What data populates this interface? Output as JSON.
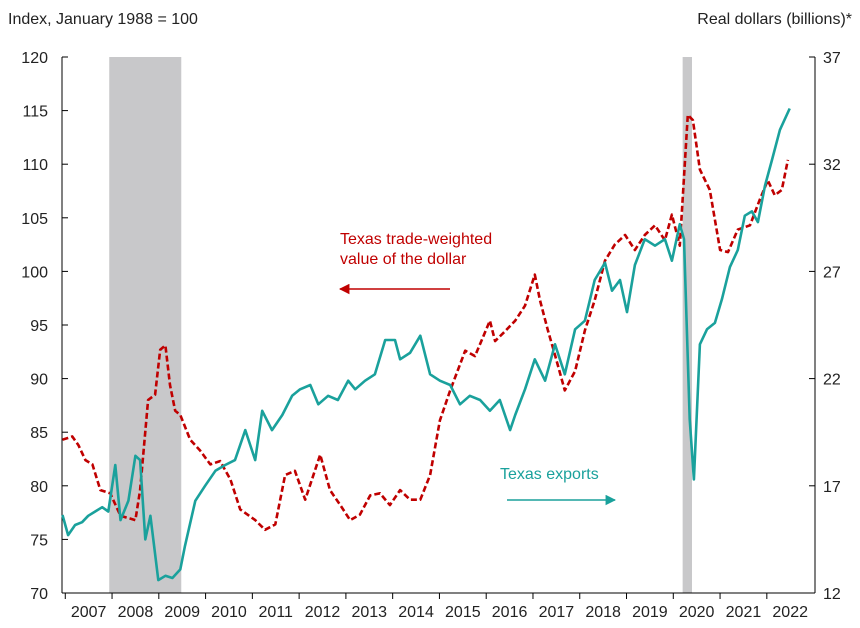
{
  "chart_data": {
    "type": "line",
    "y_axis_label": "Index, January 1988 = 100",
    "y2_axis_label": "Real dollars (billions)*",
    "xlim": [
      2006.93,
      2023.03
    ],
    "xticks": [
      2007,
      2008,
      2009,
      2010,
      2011,
      2012,
      2013,
      2014,
      2015,
      2016,
      2017,
      2018,
      2019,
      2020,
      2021,
      2022
    ],
    "ylim": [
      70,
      120
    ],
    "yticks": [
      70,
      75,
      80,
      85,
      90,
      95,
      100,
      105,
      110,
      115,
      120
    ],
    "y2lim": [
      12,
      37
    ],
    "y2ticks": [
      12,
      17,
      22,
      27,
      32,
      37
    ],
    "recessions": [
      [
        2007.94,
        2009.48
      ],
      [
        2020.2,
        2020.4
      ]
    ],
    "recession_color": "#c8c8ca",
    "series": [
      {
        "name": "Texas trade-weighted value of the dollar",
        "color": "#c00000",
        "dashed": true,
        "axis": "y",
        "x": [
          2006.94,
          2007.15,
          2007.28,
          2007.43,
          2007.58,
          2007.75,
          2007.96,
          2008.18,
          2008.5,
          2008.6,
          2008.77,
          2008.92,
          2009.03,
          2009.14,
          2009.24,
          2009.35,
          2009.46,
          2009.67,
          2009.88,
          2010.1,
          2010.31,
          2010.53,
          2010.74,
          2011.06,
          2011.27,
          2011.49,
          2011.7,
          2011.91,
          2012.13,
          2012.45,
          2012.66,
          2012.88,
          2013.09,
          2013.3,
          2013.52,
          2013.73,
          2013.94,
          2014.16,
          2014.37,
          2014.59,
          2014.8,
          2015.01,
          2015.23,
          2015.55,
          2015.76,
          2016.08,
          2016.19,
          2016.4,
          2016.62,
          2016.83,
          2017.04,
          2017.15,
          2017.32,
          2017.47,
          2017.68,
          2017.9,
          2018.11,
          2018.32,
          2018.54,
          2018.75,
          2018.97,
          2019.18,
          2019.39,
          2019.61,
          2019.82,
          2019.97,
          2020.14,
          2020.31,
          2020.42,
          2020.57,
          2020.78,
          2021.0,
          2021.17,
          2021.38,
          2021.64,
          2021.85,
          2022.02,
          2022.17,
          2022.32,
          2022.45
        ],
        "values": [
          84.3,
          84.6,
          83.8,
          82.4,
          82,
          79.6,
          79.3,
          77.2,
          76.8,
          79.6,
          88,
          88.5,
          92.7,
          93.1,
          89.4,
          87,
          86.6,
          84.3,
          83.3,
          82,
          82.3,
          80.6,
          77.8,
          76.8,
          75.9,
          76.4,
          81,
          81.4,
          78.7,
          82.9,
          79.6,
          78.2,
          76.8,
          77.3,
          79.1,
          79.3,
          78.2,
          79.6,
          78.7,
          78.7,
          81,
          86.1,
          88.9,
          92.6,
          92.1,
          95.4,
          93.5,
          94.4,
          95.4,
          96.8,
          99.7,
          97.3,
          94.5,
          92.2,
          88.9,
          90.7,
          94.5,
          97.3,
          101,
          102.5,
          103.4,
          102,
          103.4,
          104.3,
          102.9,
          105.3,
          102.4,
          114.6,
          114.1,
          109.5,
          107.6,
          102,
          101.8,
          103.9,
          104.3,
          106.7,
          108.5,
          107.1,
          107.6,
          110.4
        ]
      },
      {
        "name": "Texas exports",
        "color": "#1aa19c",
        "dashed": false,
        "axis": "y2",
        "x": [
          2006.94,
          2007.06,
          2007.21,
          2007.36,
          2007.49,
          2007.64,
          2007.79,
          2007.92,
          2008.07,
          2008.18,
          2008.35,
          2008.5,
          2008.6,
          2008.71,
          2008.82,
          2008.99,
          2009.14,
          2009.29,
          2009.46,
          2009.56,
          2009.78,
          2009.99,
          2010.21,
          2010.42,
          2010.63,
          2010.85,
          2011.06,
          2011.21,
          2011.42,
          2011.64,
          2011.85,
          2012.02,
          2012.24,
          2012.41,
          2012.62,
          2012.83,
          2013.05,
          2013.2,
          2013.41,
          2013.62,
          2013.84,
          2014.05,
          2014.16,
          2014.37,
          2014.59,
          2014.8,
          2015.01,
          2015.23,
          2015.44,
          2015.65,
          2015.87,
          2016.08,
          2016.29,
          2016.51,
          2016.62,
          2016.83,
          2017.04,
          2017.26,
          2017.47,
          2017.68,
          2017.9,
          2018.11,
          2018.32,
          2018.54,
          2018.69,
          2018.86,
          2019.01,
          2019.18,
          2019.39,
          2019.61,
          2019.82,
          2019.97,
          2020.14,
          2020.23,
          2020.35,
          2020.44,
          2020.57,
          2020.72,
          2020.89,
          2021.04,
          2021.21,
          2021.38,
          2021.53,
          2021.68,
          2021.81,
          2021.96,
          2022.11,
          2022.28,
          2022.49
        ],
        "values": [
          15.64,
          14.7,
          15.17,
          15.3,
          15.6,
          15.8,
          16,
          15.8,
          17.97,
          15.4,
          16.3,
          18.4,
          18.2,
          14.5,
          15.6,
          12.6,
          12.8,
          12.7,
          13.1,
          14.2,
          16.3,
          17,
          17.7,
          17.97,
          18.2,
          19.6,
          18.2,
          20.5,
          19.6,
          20.3,
          21.2,
          21.5,
          21.7,
          20.8,
          21.2,
          21,
          21.9,
          21.5,
          21.9,
          22.2,
          23.8,
          23.8,
          22.9,
          23.2,
          24,
          22.2,
          21.9,
          21.7,
          20.8,
          21.2,
          21,
          20.5,
          21,
          19.6,
          20.3,
          21.5,
          22.9,
          21.9,
          23.6,
          22.2,
          24.3,
          24.7,
          26.6,
          27.4,
          26.1,
          26.6,
          25.1,
          27.3,
          28.5,
          28.2,
          28.5,
          27.5,
          29.2,
          28.5,
          20.1,
          17.3,
          23.6,
          24.3,
          24.6,
          25.7,
          27.2,
          28,
          29.6,
          29.8,
          29.3,
          31,
          32.2,
          33.6,
          34.6
        ]
      }
    ],
    "annotations": [
      {
        "lines": [
          "Texas trade-weighted",
          "value of the dollar"
        ],
        "color": "#c00000",
        "arrow": "left"
      },
      {
        "lines": [
          "Texas exports"
        ],
        "color": "#1aa19c",
        "arrow": "right"
      }
    ]
  }
}
